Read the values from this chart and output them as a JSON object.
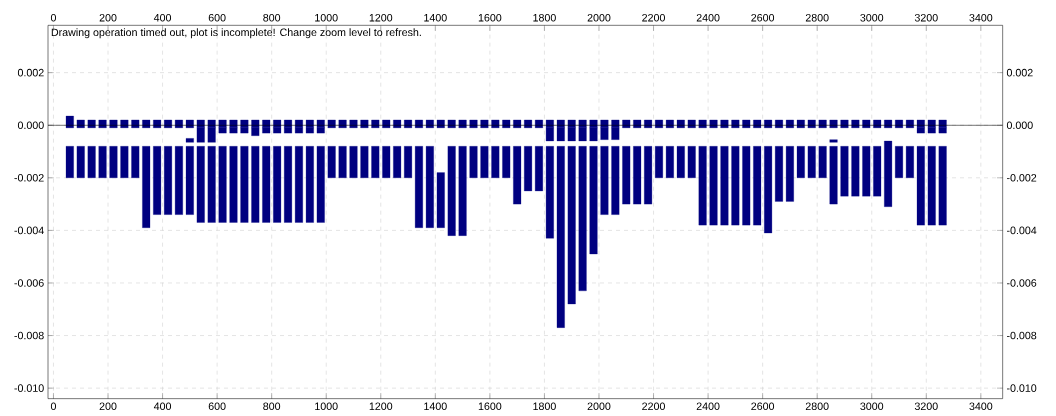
{
  "chart_data": {
    "type": "bar",
    "annotations": [
      "Drawing operation timed out, plot is incomplete! Change zoom level to refresh."
    ],
    "xlim": [
      -20,
      3480
    ],
    "xticks": [
      0,
      200,
      400,
      600,
      800,
      1000,
      1200,
      1400,
      1600,
      1800,
      2000,
      2200,
      2400,
      2600,
      2800,
      3000,
      3200,
      3400
    ],
    "x2lim": [
      -20,
      3480
    ],
    "x2ticks": [
      0,
      200,
      400,
      600,
      800,
      1000,
      1200,
      1400,
      1600,
      1800,
      2000,
      2200,
      2400,
      2600,
      2800,
      3000,
      3200,
      3400
    ],
    "ylim": [
      -0.0104,
      0.0038
    ],
    "yticks": [
      0.002,
      {
        "value": 0,
        "label": "0.000"
      },
      -0.002,
      -0.004,
      -0.006,
      -0.008,
      {
        "value": -0.01,
        "label": "-0.010"
      }
    ],
    "y2lim": [
      -0.0104,
      0.0038
    ],
    "y2ticks": [
      0.002,
      {
        "value": 0,
        "label": "0.000"
      },
      -0.002,
      -0.004,
      -0.006,
      -0.008,
      {
        "value": -0.01,
        "label": "-0.010"
      }
    ],
    "grid": true,
    "ref_lines": [
      {
        "axis": "y",
        "value": 0,
        "color": "#000000"
      }
    ],
    "series": [
      {
        "color": "#000080",
        "x": [
          60,
          100,
          140,
          180,
          220,
          260,
          300,
          340,
          380,
          420,
          460,
          500,
          540,
          580,
          620,
          660,
          700,
          740,
          780,
          820,
          860,
          900,
          940,
          980,
          1020,
          1060,
          1100,
          1140,
          1180,
          1220,
          1260,
          1300,
          1340,
          1380,
          1420,
          1460,
          1500,
          1540,
          1580,
          1620,
          1660,
          1700,
          1740,
          1780,
          1820,
          1860,
          1900,
          1940,
          1980,
          2020,
          2060,
          2100,
          2140,
          2180,
          2220,
          2260,
          2300,
          2340,
          2380,
          2420,
          2460,
          2500,
          2540,
          2580,
          2620,
          2660,
          2700,
          2740,
          2780,
          2820,
          2860,
          2900,
          2940,
          2980,
          3020,
          3060,
          3100,
          3140,
          3180,
          3220,
          3260
        ],
        "base": [
          -0.0008,
          -0.0008,
          -0.0008,
          -0.0008,
          -0.0008,
          -0.0008,
          -0.0008,
          -0.0008,
          -0.0008,
          -0.0008,
          -0.0008,
          -0.0008,
          -0.0008,
          -0.0008,
          -0.0008,
          -0.0008,
          -0.0008,
          -0.0008,
          -0.0008,
          -0.0008,
          -0.0008,
          -0.0008,
          -0.0008,
          -0.0008,
          -0.0008,
          -0.0008,
          -0.0008,
          -0.0008,
          -0.0008,
          -0.0008,
          -0.0008,
          -0.0008,
          -0.0008,
          -0.0008,
          -0.0018,
          -0.0008,
          -0.0008,
          -0.0008,
          -0.0008,
          -0.0008,
          -0.0008,
          -0.0008,
          -0.0008,
          -0.0008,
          -0.0008,
          -0.0008,
          -0.0008,
          -0.0008,
          -0.0008,
          -0.0008,
          -0.0008,
          -0.0008,
          -0.0008,
          -0.0008,
          -0.0008,
          -0.0008,
          -0.0008,
          -0.0008,
          -0.0008,
          -0.0008,
          -0.0008,
          -0.0008,
          -0.0008,
          -0.0008,
          -0.0008,
          -0.0008,
          -0.0008,
          -0.0008,
          -0.0008,
          -0.0008,
          -0.0008,
          -0.0008,
          -0.0008,
          -0.0008,
          -0.0008,
          -0.0006,
          -0.0008,
          -0.0008,
          -0.0008,
          -0.0008,
          -0.0008
        ],
        "values": [
          -0.0012,
          -0.0012,
          -0.0012,
          -0.0012,
          -0.0012,
          -0.0012,
          -0.0012,
          -0.0031,
          -0.0026,
          -0.0026,
          -0.0026,
          -0.0026,
          -0.0029,
          -0.0029,
          -0.0029,
          -0.0029,
          -0.0029,
          -0.0029,
          -0.0029,
          -0.0029,
          -0.0029,
          -0.0029,
          -0.0029,
          -0.0029,
          -0.0012,
          -0.0012,
          -0.0012,
          -0.0012,
          -0.0012,
          -0.0012,
          -0.0012,
          -0.0012,
          -0.0031,
          -0.0031,
          -0.0021,
          -0.0034,
          -0.0034,
          -0.0012,
          -0.0012,
          -0.0012,
          -0.0012,
          -0.0022,
          -0.0017,
          -0.0017,
          -0.0035,
          -0.0069,
          -0.006,
          -0.0055,
          -0.0041,
          -0.0026,
          -0.0026,
          -0.0022,
          -0.0022,
          -0.0022,
          -0.0012,
          -0.0012,
          -0.0012,
          -0.0012,
          -0.003,
          -0.003,
          -0.003,
          -0.003,
          -0.003,
          -0.003,
          -0.0033,
          -0.0021,
          -0.0021,
          -0.0012,
          -0.0012,
          -0.0012,
          -0.0022,
          -0.0019,
          -0.0019,
          -0.0019,
          -0.0019,
          -0.0025,
          -0.0012,
          -0.0012,
          -0.003,
          -0.003,
          -0.003
        ]
      },
      {
        "color": "#000080",
        "x": [
          60,
          100,
          140,
          180,
          220,
          260,
          300,
          340,
          380,
          420,
          460,
          500,
          540,
          580,
          620,
          660,
          700,
          740,
          780,
          820,
          860,
          900,
          940,
          980,
          1020,
          1060,
          1100,
          1140,
          1180,
          1220,
          1260,
          1300,
          1340,
          1380,
          1420,
          1460,
          1500,
          1540,
          1580,
          1620,
          1660,
          1700,
          1740,
          1780,
          1820,
          1860,
          1900,
          1940,
          1980,
          2020,
          2060,
          2100,
          2140,
          2180,
          2220,
          2260,
          2300,
          2340,
          2380,
          2420,
          2460,
          2500,
          2540,
          2580,
          2620,
          2660,
          2700,
          2740,
          2780,
          2820,
          2860,
          2900,
          2940,
          2980,
          3020,
          3060,
          3100,
          3140,
          3180,
          3220,
          3260
        ],
        "base": [
          -0.0001,
          -0.0001,
          -0.0001,
          -0.0001,
          -0.0001,
          -0.0001,
          -0.0001,
          -0.0001,
          -0.0001,
          -0.0001,
          -0.0001,
          -0.0001,
          -0.0001,
          -0.0001,
          -0.0001,
          -0.0001,
          -0.0001,
          -0.0001,
          -0.0001,
          -0.0001,
          -0.0001,
          -0.0001,
          -0.0001,
          -0.0001,
          -0.0001,
          -0.0001,
          -0.0001,
          -0.0001,
          -0.0001,
          -0.0001,
          -0.0001,
          -0.0001,
          -0.0001,
          -0.0001,
          -0.0001,
          -0.0001,
          -0.0001,
          -0.0001,
          -0.0001,
          -0.0001,
          -0.0001,
          -0.0001,
          -0.0001,
          -0.0001,
          -0.0001,
          -0.0001,
          -0.0001,
          -0.0001,
          -0.0001,
          -0.0001,
          -0.0001,
          -0.0001,
          -0.0001,
          -0.0001,
          -0.0001,
          -0.0001,
          -0.0001,
          -0.0001,
          -0.0001,
          -0.0001,
          -0.0001,
          -0.0001,
          -0.0001,
          -0.0001,
          -0.0001,
          -0.0001,
          -0.0001,
          -0.0001,
          -0.0001,
          -0.0001,
          -0.0001,
          -0.0001,
          -0.0001,
          -0.0001,
          -0.0001,
          -0.0001,
          -0.0001,
          -0.0001,
          -0.0001,
          -0.0001,
          -0.0001
        ],
        "values": [
          0.00045,
          0.0003,
          0.0003,
          0.0003,
          0.0003,
          0.0003,
          0.0003,
          0.0003,
          0.0003,
          0.0003,
          0.0003,
          0.0003,
          0.0003,
          0.0003,
          0.0003,
          0.0003,
          0.0003,
          0.0003,
          0.0003,
          0.0003,
          0.0003,
          0.0003,
          0.0003,
          0.0003,
          0.0003,
          0.0003,
          0.0003,
          0.0003,
          0.0003,
          0.0003,
          0.0003,
          0.0003,
          0.0003,
          0.0003,
          0.0003,
          0.0003,
          0.0003,
          0.0003,
          0.0003,
          0.0003,
          0.0003,
          0.0003,
          0.0003,
          0.0003,
          0.0003,
          0.0003,
          0.0003,
          0.0003,
          0.0003,
          0.0003,
          0.0003,
          0.0003,
          0.0003,
          0.0003,
          0.0003,
          0.0003,
          0.0003,
          0.0003,
          0.0003,
          0.0003,
          0.0003,
          0.0003,
          0.0003,
          0.0003,
          0.0003,
          0.0003,
          0.0003,
          0.0003,
          0.0003,
          0.0003,
          0.0003,
          0.0003,
          0.0003,
          0.0003,
          0.0003,
          0.0003,
          0.0003,
          0.0003,
          0.0003,
          0.0003,
          0.0003
        ]
      },
      {
        "color": "#000080",
        "x": [
          500,
          540,
          580,
          620,
          660,
          700,
          740,
          780,
          820,
          860,
          900,
          940,
          980,
          1820,
          1860,
          1900,
          1940,
          1980,
          2020,
          2060,
          2860,
          3180,
          3220,
          3260
        ],
        "base": [
          -0.0005,
          -0.0001,
          -0.0001,
          -0.0001,
          -0.0001,
          -0.0001,
          -0.0001,
          -0.0001,
          -0.0001,
          -0.0001,
          -0.0001,
          -0.0001,
          -0.0001,
          -0.0001,
          -0.0001,
          -0.0001,
          -0.0001,
          -0.0001,
          -0.0001,
          -0.0001,
          -0.00055,
          -0.0001,
          -0.0001,
          -0.0001
        ],
        "values": [
          -0.00015,
          -0.00055,
          -0.00055,
          -0.0002,
          -0.0002,
          -0.0002,
          -0.0003,
          -0.0002,
          -0.0002,
          -0.0002,
          -0.0002,
          -0.0002,
          -0.0002,
          -0.0005,
          -0.0005,
          -0.0005,
          -0.0005,
          -0.0005,
          -0.00045,
          -0.00045,
          -0.0001,
          -0.0002,
          -0.0002,
          -0.0002
        ]
      }
    ]
  }
}
